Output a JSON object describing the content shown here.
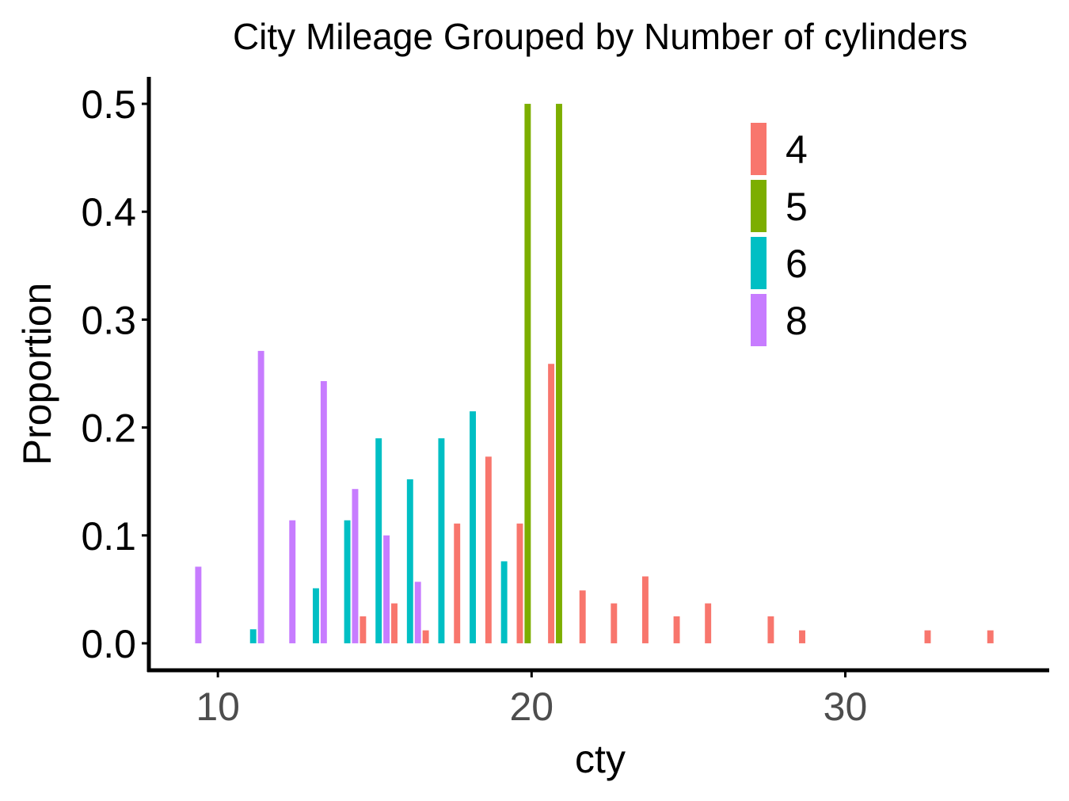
{
  "chart_data": {
    "type": "bar",
    "title": "City Mileage Grouped by Number of cylinders",
    "xlabel": "cty",
    "ylabel": "Proportion",
    "xlim": [
      7.8,
      36.5
    ],
    "ylim": [
      -0.025,
      0.525
    ],
    "x_ticks": [
      10,
      20,
      30
    ],
    "x_tick_labels": [
      "10",
      "20",
      "30"
    ],
    "y_ticks": [
      0.0,
      0.1,
      0.2,
      0.3,
      0.4,
      0.5
    ],
    "y_tick_labels": [
      "0.0",
      "0.1",
      "0.2",
      "0.3",
      "0.4",
      "0.5"
    ],
    "legend_position": "top-right inside plot",
    "legend_title": "",
    "grid": false,
    "group_order": [
      "4",
      "5",
      "6",
      "8"
    ],
    "series": [
      {
        "name": "4",
        "color": "#F8766D",
        "points": [
          {
            "x": 15,
            "y": 0.025
          },
          {
            "x": 16,
            "y": 0.037
          },
          {
            "x": 17,
            "y": 0.012
          },
          {
            "x": 18,
            "y": 0.111
          },
          {
            "x": 19,
            "y": 0.173
          },
          {
            "x": 20,
            "y": 0.111
          },
          {
            "x": 21,
            "y": 0.259
          },
          {
            "x": 22,
            "y": 0.049
          },
          {
            "x": 23,
            "y": 0.037
          },
          {
            "x": 24,
            "y": 0.062
          },
          {
            "x": 25,
            "y": 0.025
          },
          {
            "x": 26,
            "y": 0.037
          },
          {
            "x": 28,
            "y": 0.025
          },
          {
            "x": 29,
            "y": 0.012
          },
          {
            "x": 33,
            "y": 0.012
          },
          {
            "x": 35,
            "y": 0.012
          }
        ]
      },
      {
        "name": "5",
        "color": "#7CAE00",
        "points": [
          {
            "x": 20,
            "y": 0.5
          },
          {
            "x": 21,
            "y": 0.5
          }
        ]
      },
      {
        "name": "6",
        "color": "#00BFC4",
        "points": [
          {
            "x": 11,
            "y": 0.013
          },
          {
            "x": 13,
            "y": 0.051
          },
          {
            "x": 14,
            "y": 0.114
          },
          {
            "x": 15,
            "y": 0.19
          },
          {
            "x": 16,
            "y": 0.152
          },
          {
            "x": 17,
            "y": 0.19
          },
          {
            "x": 18,
            "y": 0.215
          },
          {
            "x": 19,
            "y": 0.076
          }
        ]
      },
      {
        "name": "8",
        "color": "#C77CFF",
        "points": [
          {
            "x": 9,
            "y": 0.071
          },
          {
            "x": 11,
            "y": 0.271
          },
          {
            "x": 12,
            "y": 0.114
          },
          {
            "x": 13,
            "y": 0.243
          },
          {
            "x": 14,
            "y": 0.143
          },
          {
            "x": 15,
            "y": 0.1
          },
          {
            "x": 16,
            "y": 0.057
          }
        ]
      }
    ]
  }
}
